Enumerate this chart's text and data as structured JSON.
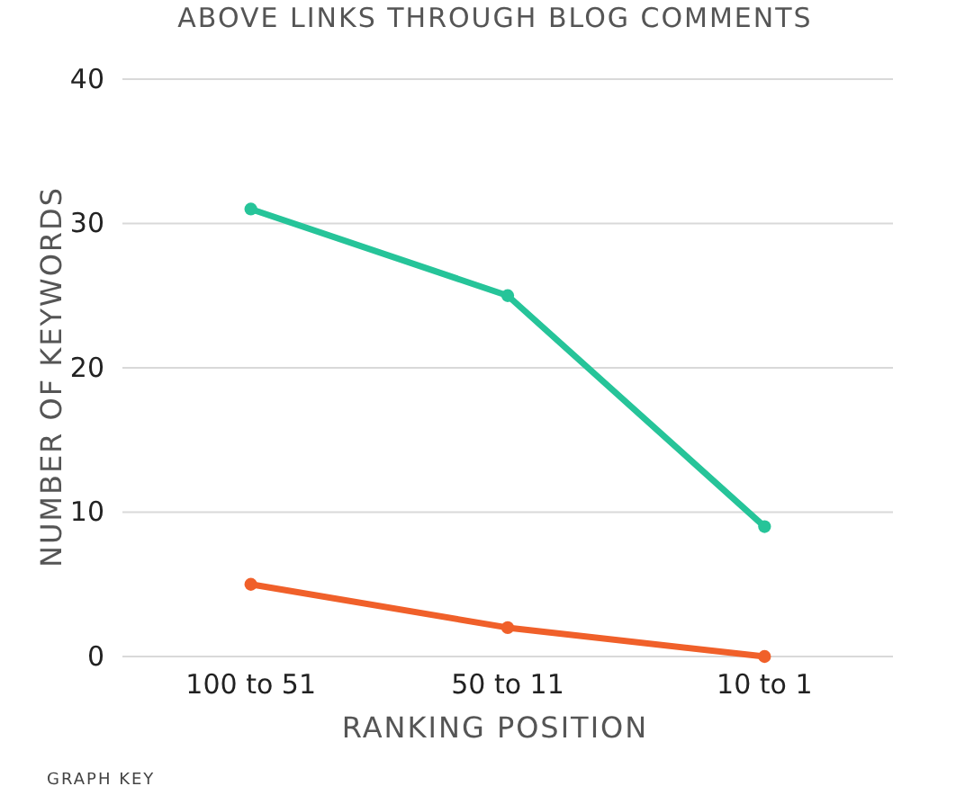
{
  "chart_data": {
    "type": "line",
    "title": "ABOVE LINKS THROUGH BLOG COMMENTS",
    "xlabel": "RANKING POSITION",
    "ylabel": "NUMBER OF KEYWORDS",
    "annotations": [
      "GRAPH KEY"
    ],
    "categories": [
      "100 to 51",
      "50 to 11",
      "10 to 1"
    ],
    "series": [
      {
        "color": "#26c499",
        "values": [
          31,
          25,
          9
        ]
      },
      {
        "color": "#f0602a",
        "values": [
          5,
          2,
          0
        ]
      }
    ],
    "ylim": [
      0,
      40
    ],
    "yticks": [
      0,
      10,
      20,
      30,
      40
    ],
    "grid": "y",
    "marker": "circle",
    "line_style": "solid"
  }
}
